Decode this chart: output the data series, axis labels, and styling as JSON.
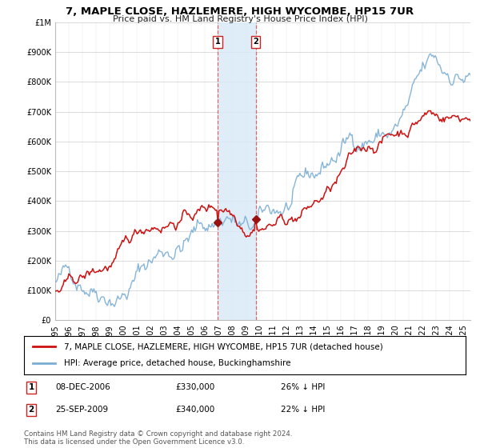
{
  "title": "7, MAPLE CLOSE, HAZLEMERE, HIGH WYCOMBE, HP15 7UR",
  "subtitle": "Price paid vs. HM Land Registry's House Price Index (HPI)",
  "ylim": [
    0,
    1000000
  ],
  "yticks": [
    0,
    100000,
    200000,
    300000,
    400000,
    500000,
    600000,
    700000,
    800000,
    900000,
    1000000
  ],
  "xlim_start": 1995.0,
  "xlim_end": 2025.5,
  "sale1_date": 2006.92,
  "sale1_price": 330000,
  "sale1_label": "1",
  "sale2_date": 2009.73,
  "sale2_price": 340000,
  "sale2_label": "2",
  "shade_x1": 2006.92,
  "shade_x2": 2009.73,
  "hpi_color": "#7aadd4",
  "price_color": "#cc1111",
  "marker_color": "#991111",
  "shade_color": "#daeaf7",
  "grid_color": "#cccccc",
  "background_color": "#ffffff",
  "legend1_label": "7, MAPLE CLOSE, HAZLEMERE, HIGH WYCOMBE, HP15 7UR (detached house)",
  "legend2_label": "HPI: Average price, detached house, Buckinghamshire",
  "table_row1": [
    "1",
    "08-DEC-2006",
    "£330,000",
    "26% ↓ HPI"
  ],
  "table_row2": [
    "2",
    "25-SEP-2009",
    "£340,000",
    "22% ↓ HPI"
  ],
  "footer": "Contains HM Land Registry data © Crown copyright and database right 2024.\nThis data is licensed under the Open Government Licence v3.0."
}
